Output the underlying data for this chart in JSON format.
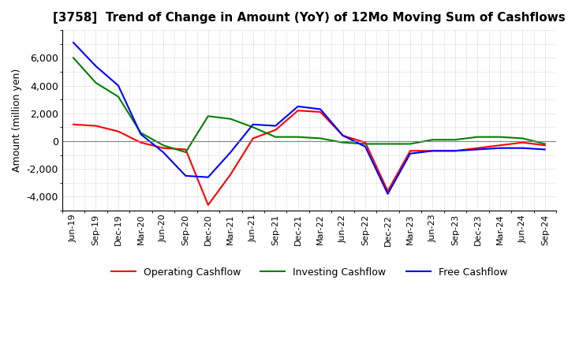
{
  "title": "[3758]  Trend of Change in Amount (YoY) of 12Mo Moving Sum of Cashflows",
  "ylabel": "Amount (million yen)",
  "x_labels": [
    "Jun-19",
    "Sep-19",
    "Dec-19",
    "Mar-20",
    "Jun-20",
    "Sep-20",
    "Dec-20",
    "Mar-21",
    "Jun-21",
    "Sep-21",
    "Dec-21",
    "Mar-22",
    "Jun-22",
    "Sep-22",
    "Dec-22",
    "Mar-23",
    "Jun-23",
    "Sep-23",
    "Dec-23",
    "Mar-24",
    "Jun-24",
    "Sep-24"
  ],
  "operating": [
    1200,
    1100,
    700,
    -100,
    -500,
    -600,
    -4600,
    -2400,
    200,
    800,
    2200,
    2100,
    400,
    -100,
    -3600,
    -700,
    -700,
    -700,
    -500,
    -300,
    -100,
    -300
  ],
  "investing": [
    6000,
    4200,
    3200,
    600,
    -300,
    -800,
    1800,
    1600,
    1000,
    300,
    300,
    200,
    -100,
    -200,
    -200,
    -200,
    100,
    100,
    300,
    300,
    200,
    -200
  ],
  "free_cashflow": [
    7100,
    5400,
    4000,
    500,
    -800,
    -2500,
    -2600,
    -800,
    1200,
    1100,
    2500,
    2300,
    400,
    -400,
    -3800,
    -900,
    -700,
    -700,
    -600,
    -500,
    -500,
    -600
  ],
  "operating_color": "#ff0000",
  "investing_color": "#008000",
  "free_color": "#0000ff",
  "ylim": [
    -5000,
    8000
  ],
  "yticks": [
    -4000,
    -2000,
    0,
    2000,
    4000,
    6000
  ],
  "background_color": "#ffffff",
  "grid_color": "#aaaaaa"
}
